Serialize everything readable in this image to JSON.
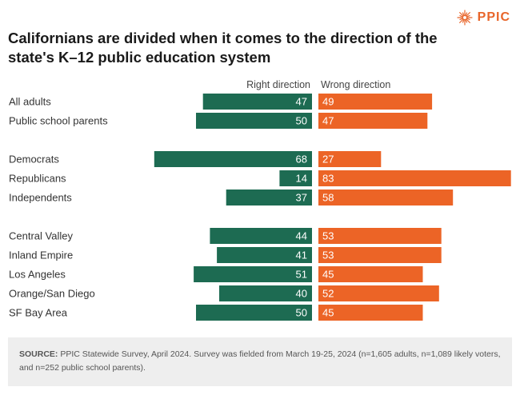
{
  "brand": {
    "name": "PPIC",
    "color": "#e8652a",
    "logo_icon": "starburst-icon"
  },
  "title": "Californians are divided when it comes to the direction of the state's K–12 public education system",
  "colors": {
    "right_direction": "#1d6b52",
    "wrong_direction": "#ec6426",
    "label_text": "#333333",
    "value_text": "#ffffff"
  },
  "chart_data": {
    "type": "bar",
    "orientation": "diverging-horizontal",
    "categories": [
      "All adults",
      "Public school parents",
      "Democrats",
      "Republicans",
      "Independents",
      "Central Valley",
      "Inland Empire",
      "Los Angeles",
      "Orange/San Diego",
      "SF Bay Area"
    ],
    "groups": [
      [
        "All adults",
        "Public school parents"
      ],
      [
        "Democrats",
        "Republicans",
        "Independents"
      ],
      [
        "Central Valley",
        "Inland Empire",
        "Los Angeles",
        "Orange/San Diego",
        "SF Bay Area"
      ]
    ],
    "series": [
      {
        "name": "Right direction",
        "values": [
          47,
          50,
          68,
          14,
          37,
          44,
          41,
          51,
          40,
          50
        ]
      },
      {
        "name": "Wrong direction",
        "values": [
          49,
          47,
          27,
          83,
          58,
          53,
          53,
          45,
          52,
          45
        ]
      }
    ],
    "legend": "top",
    "grid": false
  },
  "source": {
    "label": "SOURCE:",
    "text": "PPIC Statewide Survey, April 2024. Survey was fielded from March 19-25, 2024 (n=1,605 adults, n=1,089 likely voters, and n=252 public school parents)."
  }
}
